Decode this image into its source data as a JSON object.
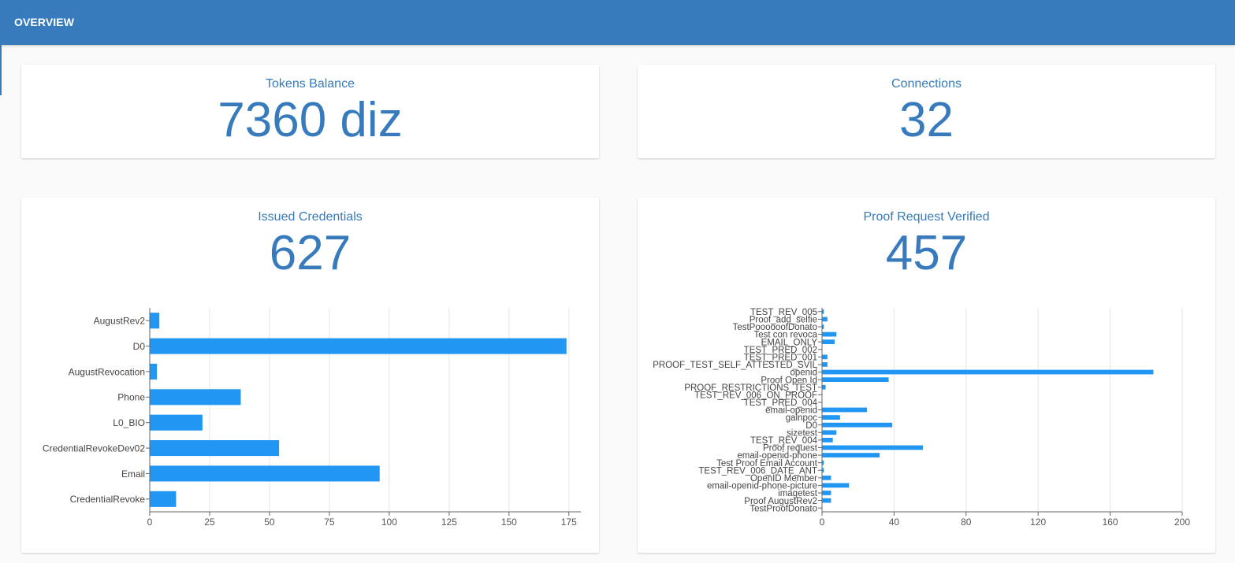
{
  "header": {
    "title": "OVERVIEW"
  },
  "cards": {
    "tokens": {
      "label": "Tokens Balance",
      "value": "7360 diz"
    },
    "connections": {
      "label": "Connections",
      "value": "32"
    },
    "issued": {
      "label": "Issued Credentials",
      "value": "627"
    },
    "proofs": {
      "label": "Proof Request Verified",
      "value": "457"
    }
  },
  "colors": {
    "accent": "#377bbd",
    "bar": "#2196f3",
    "grid": "#e6e6e6"
  },
  "chart_data": [
    {
      "type": "bar",
      "orientation": "horizontal",
      "categories": [
        "AugustRev2",
        "D0",
        "AugustRevocation",
        "Phone",
        "L0_BIO",
        "CredentialRevokeDev02",
        "Email",
        "CredentialRevoke"
      ],
      "values": [
        4,
        174,
        3,
        38,
        22,
        54,
        96,
        11
      ],
      "xticks": [
        0,
        25,
        50,
        75,
        100,
        125,
        150,
        175
      ],
      "xlim": [
        0,
        180
      ],
      "grid": true
    },
    {
      "type": "bar",
      "orientation": "horizontal",
      "categories": [
        "TEST_REV_005",
        "Proof_add_selfie",
        "TestPoooooofDonato",
        "Test con revoca",
        "EMAIL_ONLY",
        "TEST_PRED_002",
        "TEST_PRED_001",
        "PROOF_TEST_SELF_ATTESTED_SVIL",
        "openid",
        "Proof Open Id",
        "PROOF_RESTRICTIONS_TEST",
        "TEST_REV_006_ON_PROOF",
        "TEST_PRED_004",
        "email-openid",
        "galnpoc",
        "D0",
        "sizetest",
        "TEST_REV_004",
        "Proof request",
        "email-openid-phone",
        "Test Proof Email Account",
        "TEST_REV_006_DATE_ANT",
        "OpenID Member",
        "email-openid-phone-picture",
        "imagetest",
        "Proof AugustRev2",
        "TestProofDonato"
      ],
      "values": [
        1,
        3,
        1,
        8,
        7,
        0,
        3,
        3,
        184,
        37,
        2,
        0,
        0,
        25,
        10,
        39,
        8,
        6,
        56,
        32,
        1,
        1,
        5,
        15,
        5,
        5,
        0
      ],
      "xticks": [
        0,
        40,
        80,
        120,
        160,
        200
      ],
      "xlim": [
        0,
        200
      ],
      "grid": true
    }
  ]
}
